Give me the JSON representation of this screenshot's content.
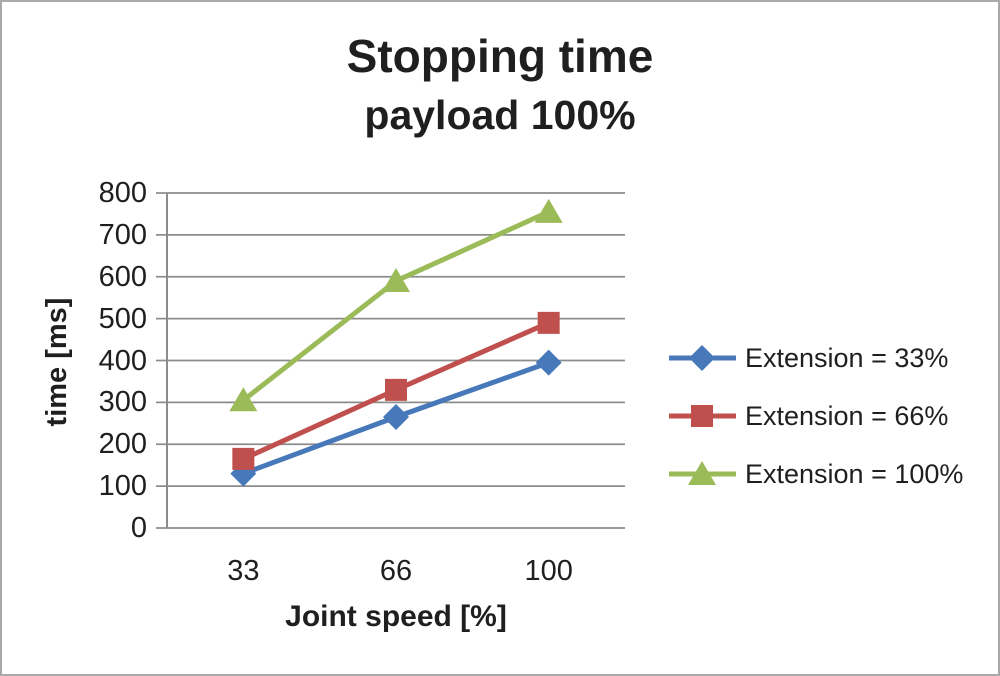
{
  "chart_data": {
    "type": "line",
    "title": "Stopping time",
    "subtitle": "payload 100%",
    "xlabel": "Joint speed [%]",
    "ylabel": "time [ms]",
    "categories": [
      "33",
      "66",
      "100"
    ],
    "yticks": [
      0,
      100,
      200,
      300,
      400,
      500,
      600,
      700,
      800
    ],
    "ylim": [
      0,
      800
    ],
    "grid": "horizontal",
    "legend_position": "right",
    "series": [
      {
        "name": "Extension = 33%",
        "marker": "diamond",
        "color": "#4779BA",
        "values": [
          130,
          265,
          395
        ]
      },
      {
        "name": "Extension = 66%",
        "marker": "square",
        "color": "#C0504D",
        "values": [
          165,
          330,
          490
        ]
      },
      {
        "name": "Extension = 100%",
        "marker": "triangle",
        "color": "#9BBB59",
        "values": [
          305,
          590,
          755
        ]
      }
    ],
    "colors": {
      "gridline": "#8c8c8c",
      "axis": "#8c8c8c",
      "text": "#1f1f1f",
      "background": "#ffffff"
    }
  }
}
